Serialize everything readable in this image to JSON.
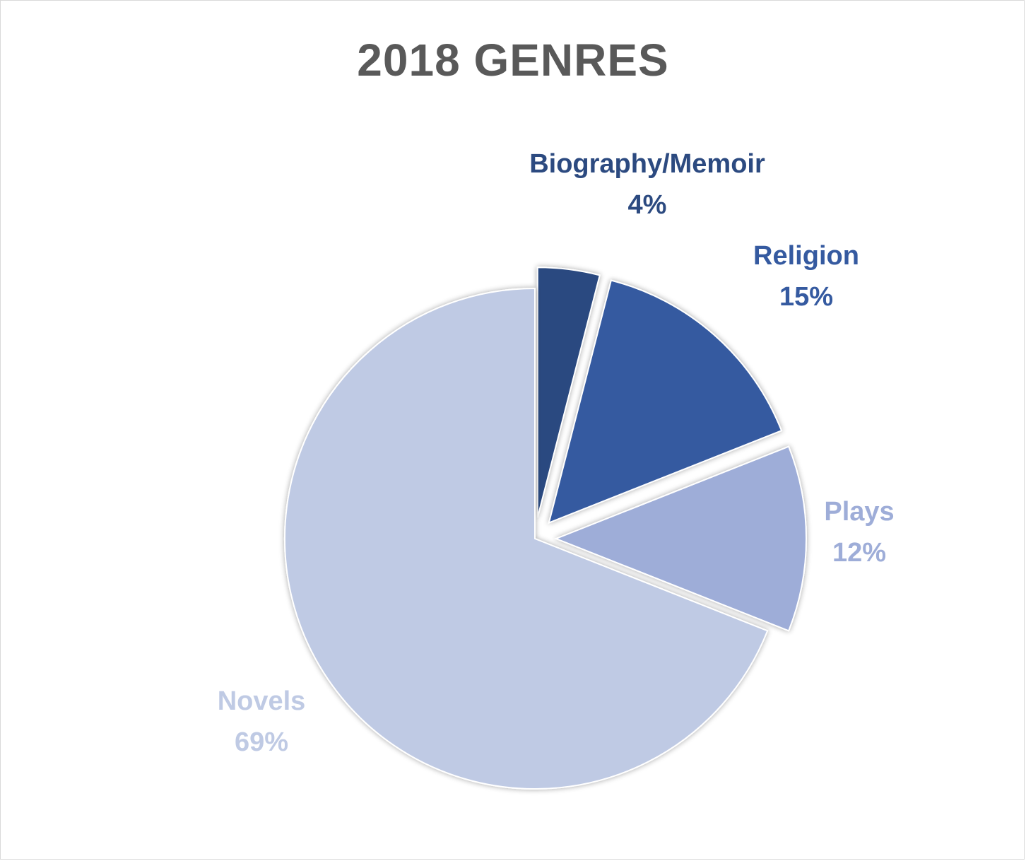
{
  "chart_data": {
    "type": "pie",
    "title": "2018 GENRES",
    "categories": [
      "Biography/Memoir",
      "Religion",
      "Plays",
      "Novels"
    ],
    "values": [
      4,
      15,
      12,
      69
    ],
    "value_labels": [
      "4%",
      "15%",
      "12%",
      "69%"
    ],
    "colors": [
      "#2c4a80",
      "#355aa0",
      "#9eadd8",
      "#bfcae4"
    ],
    "label_colors": [
      "#2c4a80",
      "#355aa0",
      "#9eadd8",
      "#bfcae4"
    ],
    "exploded_slices": [
      "Biography/Memoir",
      "Religion",
      "Plays"
    ],
    "start_angle_deg": 0,
    "direction": "clockwise",
    "legend": "none"
  }
}
